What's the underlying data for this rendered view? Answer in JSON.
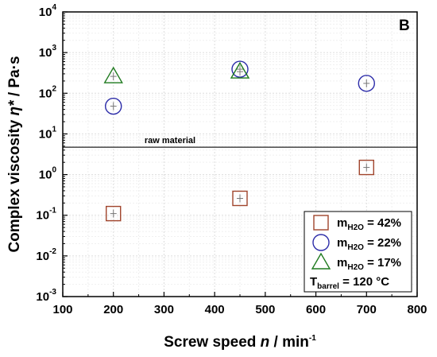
{
  "chart_data": {
    "type": "scatter",
    "panel_label": "B",
    "xlabel": {
      "prefix": "Screw speed ",
      "italic": "n",
      "unit": " / min",
      "unit_sup": "-1"
    },
    "ylabel": {
      "prefix": "Complex viscosity ",
      "italic": "η*",
      "unit": " / Pa·s"
    },
    "xlim": [
      100,
      800
    ],
    "ylim_log10": [
      -3,
      4
    ],
    "y_scale": "log",
    "grid": true,
    "x_ticks": [
      "100",
      "200",
      "300",
      "400",
      "500",
      "600",
      "700",
      "800"
    ],
    "y_ticks": [
      {
        "base": "10",
        "exp": "4"
      },
      {
        "base": "10",
        "exp": "3"
      },
      {
        "base": "10",
        "exp": "2"
      },
      {
        "base": "10",
        "exp": "1"
      },
      {
        "base": "10",
        "exp": "0"
      },
      {
        "base": "10",
        "exp": "-1"
      },
      {
        "base": "10",
        "exp": "-2"
      },
      {
        "base": "10",
        "exp": "-3"
      }
    ],
    "reference_line": {
      "y": 4.7,
      "label": "raw material",
      "color": "#555555"
    },
    "series": [
      {
        "label_main": "m",
        "label_sub": "H2O",
        "label_rest": " = 42%",
        "marker": "square",
        "color": "#a0442c",
        "points": [
          {
            "x": 200,
            "y": 0.11
          },
          {
            "x": 450,
            "y": 0.26
          },
          {
            "x": 700,
            "y": 1.5
          }
        ]
      },
      {
        "label_main": "m",
        "label_sub": "H2O",
        "label_rest": " = 22%",
        "marker": "circle",
        "color": "#2b2ba8",
        "points": [
          {
            "x": 200,
            "y": 48
          },
          {
            "x": 450,
            "y": 390
          },
          {
            "x": 700,
            "y": 175
          }
        ]
      },
      {
        "label_main": "m",
        "label_sub": "H2O",
        "label_rest": " = 17%",
        "marker": "triangle",
        "color": "#1f7a1f",
        "points": [
          {
            "x": 200,
            "y": 260
          },
          {
            "x": 450,
            "y": 340
          }
        ]
      }
    ],
    "legend_note": {
      "main": "T",
      "sub": "barrel",
      "rest": " = 120 °C"
    },
    "legend_position": "lower-right"
  }
}
